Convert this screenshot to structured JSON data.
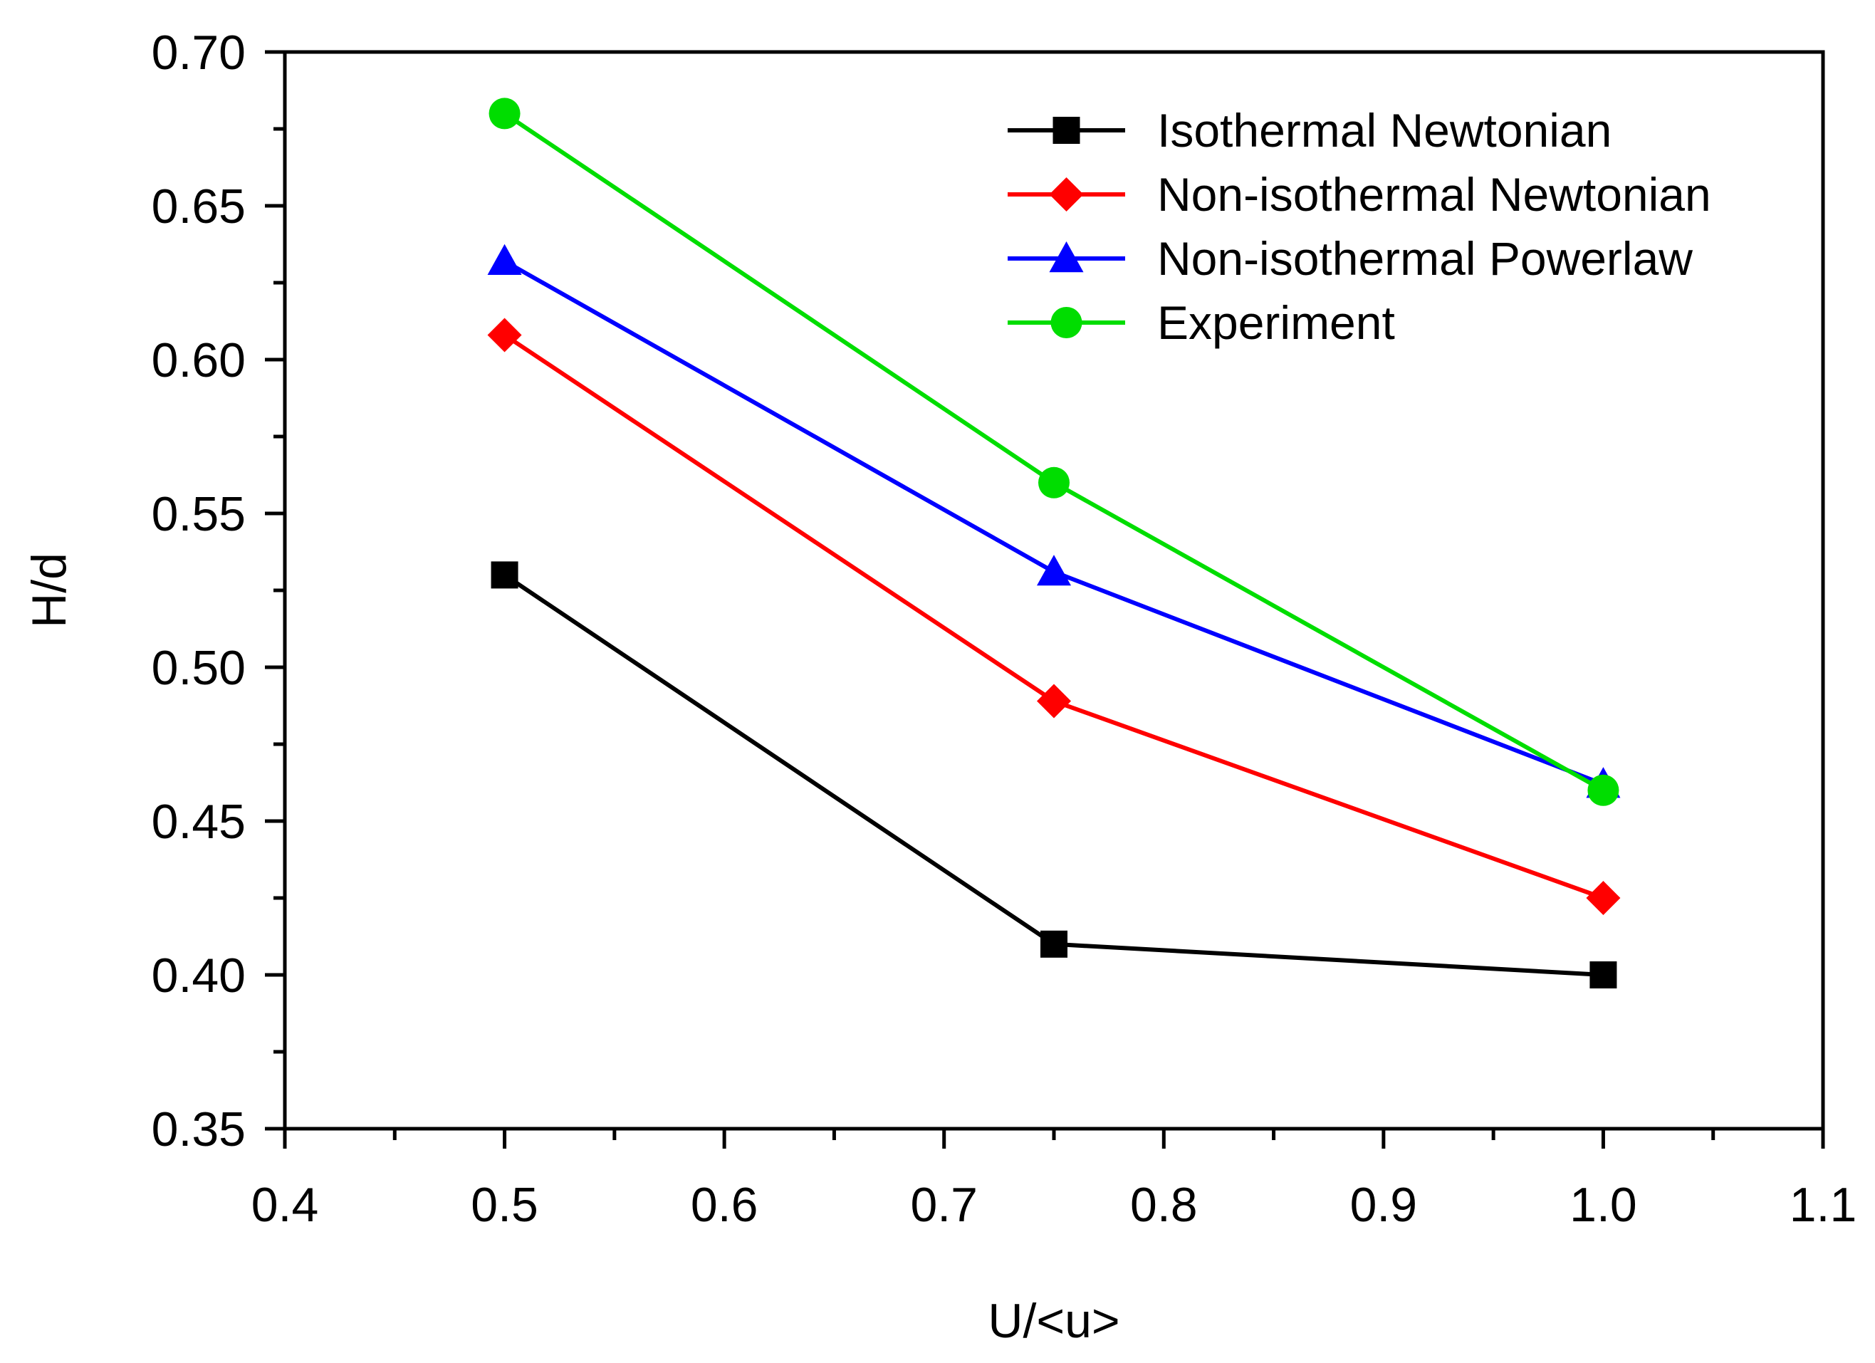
{
  "chart_data": {
    "type": "line",
    "title": "",
    "xlabel": "U/<u>",
    "ylabel": "H/d",
    "xlim": [
      0.4,
      1.1
    ],
    "ylim": [
      0.35,
      0.7
    ],
    "x_major_ticks": [
      0.4,
      0.5,
      0.6,
      0.7,
      0.8,
      0.9,
      1.0,
      1.1
    ],
    "x_tick_labels": [
      "0.4",
      "0.5",
      "0.6",
      "0.7",
      "0.8",
      "0.9",
      "1.0",
      "1.1"
    ],
    "y_major_ticks": [
      0.35,
      0.4,
      0.45,
      0.5,
      0.55,
      0.6,
      0.65,
      0.7
    ],
    "y_tick_labels": [
      "0.35",
      "0.40",
      "0.45",
      "0.50",
      "0.55",
      "0.60",
      "0.65",
      "0.70"
    ],
    "grid": false,
    "legend_position": "top-right",
    "x": [
      0.5,
      0.75,
      1.0
    ],
    "series": [
      {
        "name": "Isothermal Newtonian",
        "color": "#000000",
        "marker": "square",
        "values": [
          0.53,
          0.41,
          0.4
        ]
      },
      {
        "name": "Non-isothermal Newtonian",
        "color": "#ff0000",
        "marker": "diamond",
        "values": [
          0.608,
          0.489,
          0.425
        ]
      },
      {
        "name": "Non-isothermal Powerlaw",
        "color": "#0000ff",
        "marker": "triangle",
        "values": [
          0.632,
          0.531,
          0.462
        ]
      },
      {
        "name": "Experiment",
        "color": "#00dd00",
        "marker": "circle",
        "values": [
          0.68,
          0.56,
          0.46
        ]
      }
    ]
  }
}
